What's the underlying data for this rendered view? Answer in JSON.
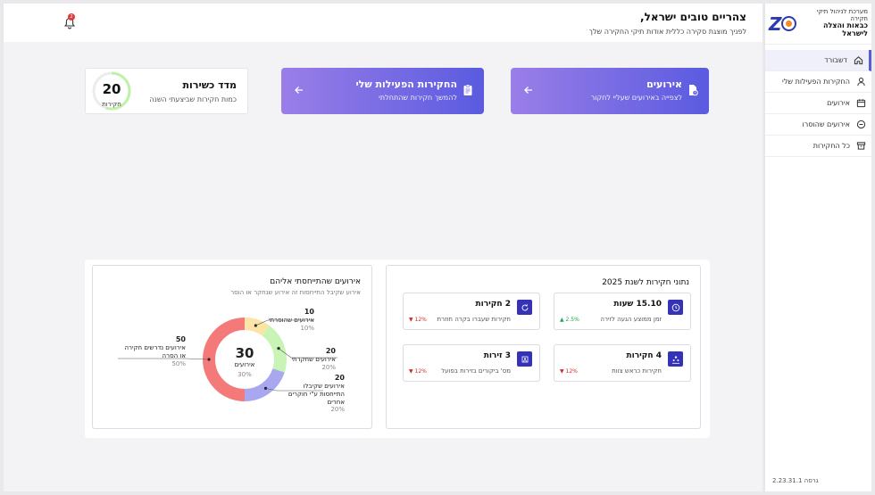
{
  "app": {
    "logo_line1": "מערכת לניהול תיקי חקירה",
    "logo_line2": "כבאות והצלה לישראל",
    "version": "גרסה 2.23.31.1"
  },
  "sidebar": {
    "items": [
      {
        "label": "דשבורד",
        "icon": "home-icon",
        "active": true
      },
      {
        "label": "החקירות הפעילות שלי",
        "icon": "user-icon"
      },
      {
        "label": "אירועים",
        "icon": "calendar-icon"
      },
      {
        "label": "אירועים שהוסרו",
        "icon": "minus-circle-icon"
      },
      {
        "label": "כל החקירות",
        "icon": "archive-icon"
      }
    ]
  },
  "header": {
    "greeting": "צהריים טובים ישראל,",
    "subtitle": "לפניך מוצגת סקירה כללית אודות תיקי החקירה שלך",
    "notifications": "2"
  },
  "cards": {
    "events": {
      "title": "אירועים",
      "subtitle": "לצפייה באירועים שעליי לחקור"
    },
    "active": {
      "title": "החקירות הפעילות שלי",
      "subtitle": "להמשך חקירות שהתחלתי"
    },
    "fitness": {
      "title": "מדד כשירות",
      "subtitle": "כמות חקירות שביצעתי השנה",
      "value": "20",
      "unit": "חקירות",
      "progress": 0.55
    }
  },
  "stats": {
    "title": "נתוני חקירות לשנת 2025",
    "items": [
      {
        "value": "15.10 שעות",
        "desc": "זמן ממוצע הגעה לזירה",
        "change": "2.5%",
        "dir": "up",
        "icon": "clock-icon"
      },
      {
        "value": "2 חקירות",
        "desc": "חקירות שעברו בקרה חוזרת",
        "change": "12%",
        "dir": "down",
        "icon": "refresh-icon"
      },
      {
        "value": "4 חקירות",
        "desc": "חקירות כראש צוות",
        "change": "12%",
        "dir": "down",
        "icon": "team-icon"
      },
      {
        "value": "3 זירות",
        "desc": "מס' ביקורים בזירות בפועל",
        "change": "12%",
        "dir": "down",
        "icon": "scene-icon"
      }
    ]
  },
  "events_chart": {
    "title": "אירועים שהתייחסתי אליהם",
    "subtitle": "אירוע שקיבל התייחסות זה אירוע שנחקר או הוסר",
    "center_value": "30",
    "center_label": "אירועים",
    "center_pct": "30%",
    "colors": {
      "removed": "#fce3a6",
      "investigated": "#c8f5b6",
      "others": "#a9a7f0",
      "needs": "#f47a79"
    }
  },
  "chart_data": {
    "type": "pie",
    "categories": [
      "אירועים שהוסרתי",
      "אירועים שחקרתי",
      "אירועים שקיבלו התייחסות ע\"י חוקרים אחרים",
      "אירועים נדרשים חקירה או הסרה"
    ],
    "values": [
      10,
      20,
      20,
      50
    ],
    "counts": [
      "10",
      "20",
      "20",
      "50"
    ],
    "percents": [
      "10%",
      "20%",
      "20%",
      "50%"
    ],
    "labels": [
      "אירועים שהוסרתי",
      "אירועים שחקרתי",
      "אירועים שקיבלו התייחסות ע\"י חוקרים אחרים",
      "אירועים נדרשים חקירה או הסרה"
    ]
  }
}
